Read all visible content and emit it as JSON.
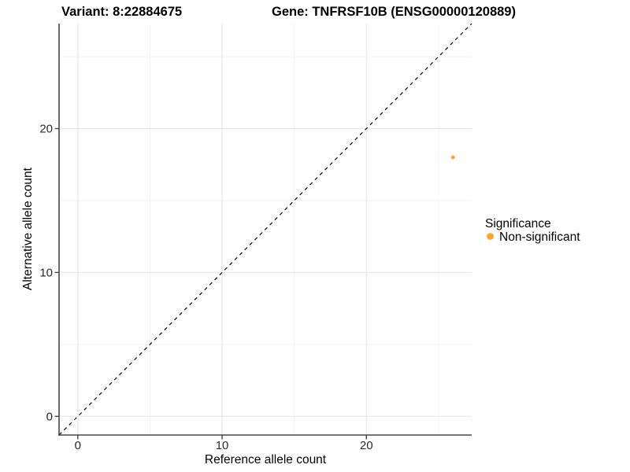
{
  "title": {
    "variant": "Variant: 8:22884675",
    "gene": "Gene: TNFRSF10B (ENSG00000120889)"
  },
  "axes": {
    "x_label": "Reference allele count",
    "y_label": "Alternative allele count"
  },
  "legend": {
    "title": "Significance",
    "items": [
      {
        "label": "Non-significant",
        "color": "#FFA330"
      }
    ]
  },
  "colors": {
    "background": "#ffffff",
    "grid_major": "#e7e7e7",
    "grid_minor": "#f2f2f2",
    "axis_line": "#474747",
    "tick_mark": "#474747",
    "reference_line": "#000000",
    "point": "#FFA330"
  },
  "chart_data": {
    "type": "scatter",
    "title": "Variant: 8:22884675 | Gene: TNFRSF10B (ENSG00000120889)",
    "xlabel": "Reference allele count",
    "ylabel": "Alternative allele count",
    "x_range": [
      -1.3,
      27.3
    ],
    "y_range": [
      -1.3,
      27.3
    ],
    "x_ticks": [
      0,
      10,
      20
    ],
    "y_ticks": [
      0,
      10,
      20
    ],
    "x_minor_ticks": [
      5,
      15,
      25
    ],
    "y_minor_ticks": [
      5,
      15,
      25
    ],
    "grid": true,
    "legend_position": "right-center",
    "series": [
      {
        "name": "Non-significant",
        "color": "#FFA330",
        "points": [
          {
            "x": 26,
            "y": 18
          }
        ]
      }
    ],
    "reference_line": {
      "slope": 1,
      "intercept": 0,
      "style": "dashed",
      "color": "#000000"
    }
  }
}
